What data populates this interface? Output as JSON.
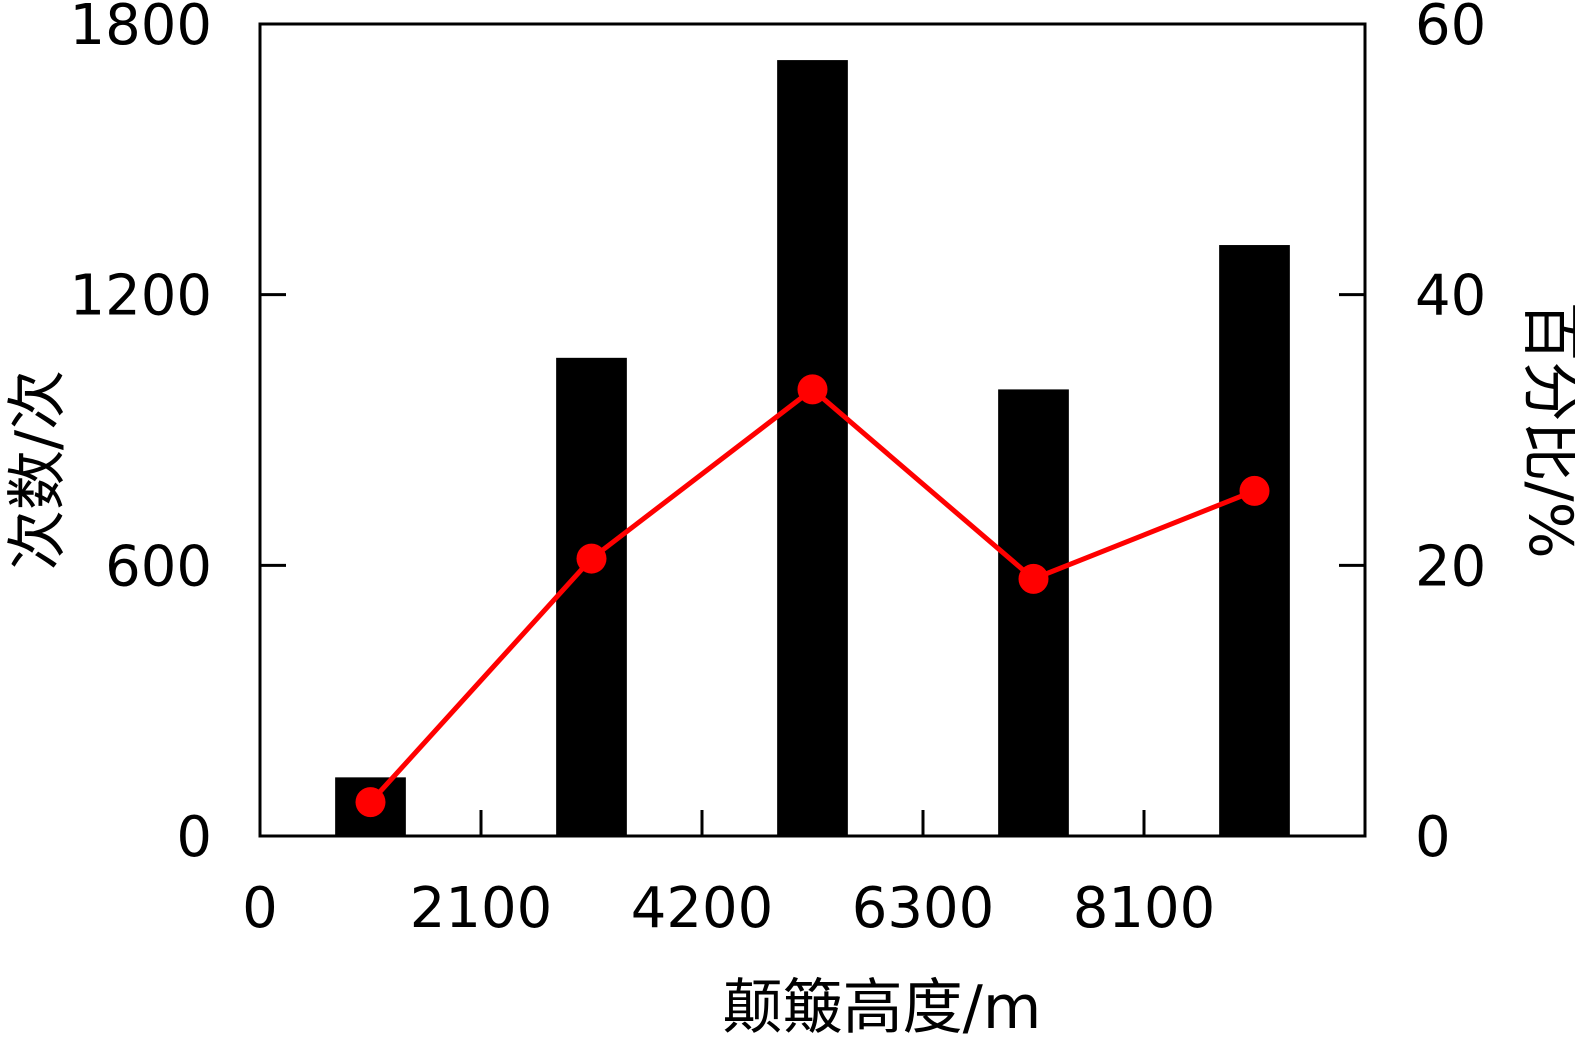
{
  "chart_data": {
    "type": "bar",
    "xlabel": "颠簸高度/m",
    "ylabel_left": "次数/次",
    "ylabel_right": "百分比/%",
    "x_tick_labels": [
      "0",
      "2100",
      "4200",
      "6300",
      "8100"
    ],
    "y_left_ticks": [
      0,
      600,
      1200,
      1800
    ],
    "y_right_ticks": [
      0,
      20,
      40,
      60
    ],
    "ylim_left": [
      0,
      1800
    ],
    "ylim_right": [
      0,
      60
    ],
    "bar_categories": [
      "0–2100",
      "2100–4200",
      "4200–6300",
      "6300–8100",
      ">8100"
    ],
    "series": [
      {
        "kind": "bar",
        "axis": "left",
        "color": "#000000",
        "values": [
          130,
          1060,
          1720,
          990,
          1310
        ]
      },
      {
        "kind": "line",
        "axis": "right",
        "color": "#ff0000",
        "values": [
          2.5,
          20.5,
          33,
          19,
          25.5
        ]
      }
    ],
    "grid": false
  }
}
